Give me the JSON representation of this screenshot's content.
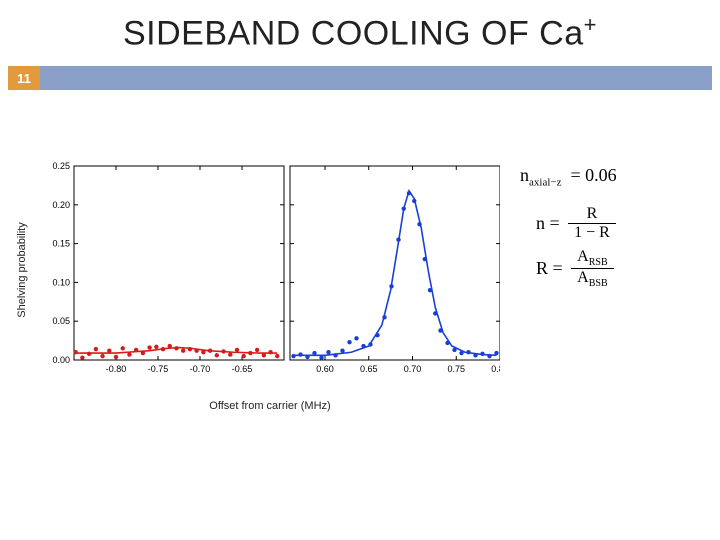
{
  "page": {
    "number": "11",
    "bar_color": "#8aa0c8",
    "num_box_color": "#e19b3c"
  },
  "title": {
    "text_main": "SIDEBAND COOLING OF Ca",
    "superscript": "+"
  },
  "equations": {
    "n_label": "n",
    "n_sub": "axial−z",
    "n_value": "0.06",
    "eq2_left": "n",
    "eq2_num": "R",
    "eq2_den": "1 − R",
    "eq3_left": "R",
    "eq3_num": "A",
    "eq3_num_sub": "RSB",
    "eq3_den": "A",
    "eq3_den_sub": "BSB"
  },
  "chart": {
    "type": "scatter+line",
    "ylabel": "Shelving probability",
    "xlabel": "Offset from carrier (MHz)",
    "ylim": [
      0.0,
      0.25
    ],
    "yticks": [
      0.0,
      0.05,
      0.1,
      0.15,
      0.2,
      0.25
    ],
    "ytick_labels": [
      "0.00",
      "0.05",
      "0.10",
      "0.15",
      "0.20",
      "0.25"
    ],
    "tick_fontsize": 9,
    "axis_color": "#000000",
    "background_color": "#ffffff",
    "marker_radius": 2.2,
    "line_width": 1.6,
    "panels": [
      {
        "xlim": [
          -0.85,
          -0.6
        ],
        "xticks": [
          -0.8,
          -0.75,
          -0.7,
          -0.65
        ],
        "xtick_labels": [
          "-0.80",
          "-0.75",
          "-0.70",
          "-0.65"
        ],
        "series_color": "#d91a1a",
        "points": [
          [
            -0.848,
            0.01
          ],
          [
            -0.84,
            0.003
          ],
          [
            -0.832,
            0.008
          ],
          [
            -0.824,
            0.014
          ],
          [
            -0.816,
            0.005
          ],
          [
            -0.808,
            0.012
          ],
          [
            -0.8,
            0.004
          ],
          [
            -0.792,
            0.015
          ],
          [
            -0.784,
            0.007
          ],
          [
            -0.776,
            0.013
          ],
          [
            -0.768,
            0.009
          ],
          [
            -0.76,
            0.016
          ],
          [
            -0.752,
            0.017
          ],
          [
            -0.744,
            0.014
          ],
          [
            -0.736,
            0.018
          ],
          [
            -0.728,
            0.015
          ],
          [
            -0.72,
            0.012
          ],
          [
            -0.712,
            0.014
          ],
          [
            -0.704,
            0.012
          ],
          [
            -0.696,
            0.01
          ],
          [
            -0.688,
            0.012
          ],
          [
            -0.68,
            0.006
          ],
          [
            -0.672,
            0.011
          ],
          [
            -0.664,
            0.007
          ],
          [
            -0.656,
            0.013
          ],
          [
            -0.648,
            0.005
          ],
          [
            -0.64,
            0.009
          ],
          [
            -0.632,
            0.013
          ],
          [
            -0.624,
            0.006
          ],
          [
            -0.616,
            0.01
          ],
          [
            -0.608,
            0.005
          ]
        ],
        "line": [
          [
            -0.848,
            0.009
          ],
          [
            -0.8,
            0.009
          ],
          [
            -0.76,
            0.012
          ],
          [
            -0.74,
            0.015
          ],
          [
            -0.725,
            0.016
          ],
          [
            -0.71,
            0.015
          ],
          [
            -0.69,
            0.012
          ],
          [
            -0.66,
            0.01
          ],
          [
            -0.63,
            0.009
          ],
          [
            -0.608,
            0.009
          ]
        ]
      },
      {
        "xlim": [
          0.56,
          0.8
        ],
        "xticks": [
          0.6,
          0.65,
          0.7,
          0.75,
          0.8
        ],
        "xtick_labels": [
          "0.60",
          "0.65",
          "0.70",
          "0.75",
          "0.80"
        ],
        "series_color": "#1a3fd9",
        "points": [
          [
            0.564,
            0.005
          ],
          [
            0.572,
            0.007
          ],
          [
            0.58,
            0.004
          ],
          [
            0.588,
            0.009
          ],
          [
            0.596,
            0.003
          ],
          [
            0.604,
            0.01
          ],
          [
            0.612,
            0.006
          ],
          [
            0.62,
            0.012
          ],
          [
            0.628,
            0.023
          ],
          [
            0.636,
            0.028
          ],
          [
            0.644,
            0.018
          ],
          [
            0.652,
            0.02
          ],
          [
            0.66,
            0.032
          ],
          [
            0.668,
            0.055
          ],
          [
            0.676,
            0.095
          ],
          [
            0.684,
            0.155
          ],
          [
            0.69,
            0.195
          ],
          [
            0.696,
            0.215
          ],
          [
            0.702,
            0.205
          ],
          [
            0.708,
            0.175
          ],
          [
            0.714,
            0.13
          ],
          [
            0.72,
            0.09
          ],
          [
            0.726,
            0.06
          ],
          [
            0.732,
            0.038
          ],
          [
            0.74,
            0.022
          ],
          [
            0.748,
            0.013
          ],
          [
            0.756,
            0.009
          ],
          [
            0.764,
            0.01
          ],
          [
            0.772,
            0.006
          ],
          [
            0.78,
            0.008
          ],
          [
            0.788,
            0.005
          ],
          [
            0.796,
            0.009
          ]
        ],
        "line": [
          [
            0.564,
            0.006
          ],
          [
            0.6,
            0.006
          ],
          [
            0.63,
            0.01
          ],
          [
            0.65,
            0.018
          ],
          [
            0.665,
            0.045
          ],
          [
            0.675,
            0.09
          ],
          [
            0.683,
            0.145
          ],
          [
            0.69,
            0.195
          ],
          [
            0.696,
            0.218
          ],
          [
            0.702,
            0.208
          ],
          [
            0.71,
            0.17
          ],
          [
            0.718,
            0.115
          ],
          [
            0.726,
            0.068
          ],
          [
            0.735,
            0.035
          ],
          [
            0.745,
            0.018
          ],
          [
            0.76,
            0.01
          ],
          [
            0.78,
            0.007
          ],
          [
            0.796,
            0.006
          ]
        ]
      }
    ]
  }
}
